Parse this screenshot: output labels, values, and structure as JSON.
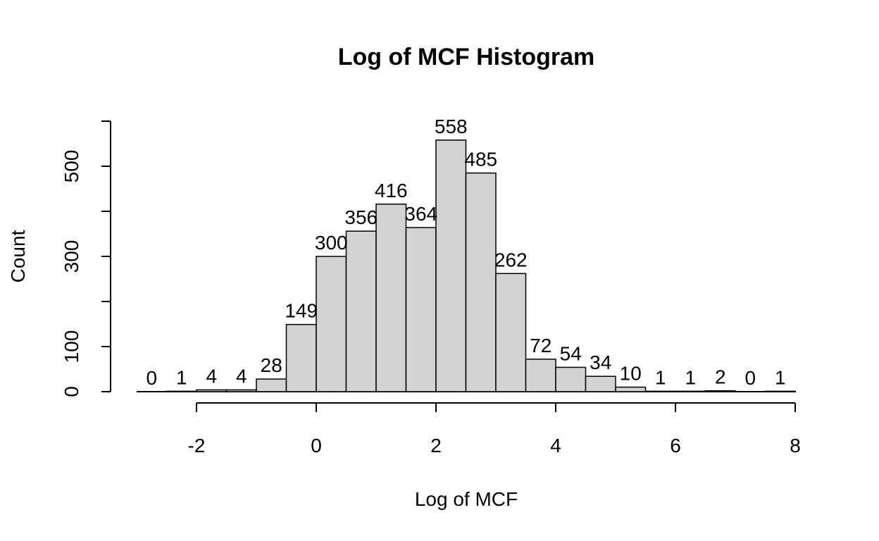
{
  "chart_data": {
    "type": "bar",
    "title": "Log of MCF Histogram",
    "xlabel": "Log of MCF",
    "ylabel": "Count",
    "bin_width": 0.5,
    "bins": [
      {
        "start": -3.0,
        "end": -2.5,
        "count": 0
      },
      {
        "start": -2.5,
        "end": -2.0,
        "count": 1
      },
      {
        "start": -2.0,
        "end": -1.5,
        "count": 4
      },
      {
        "start": -1.5,
        "end": -1.0,
        "count": 4
      },
      {
        "start": -1.0,
        "end": -0.5,
        "count": 28
      },
      {
        "start": -0.5,
        "end": 0.0,
        "count": 149
      },
      {
        "start": 0.0,
        "end": 0.5,
        "count": 300
      },
      {
        "start": 0.5,
        "end": 1.0,
        "count": 356
      },
      {
        "start": 1.0,
        "end": 1.5,
        "count": 416
      },
      {
        "start": 1.5,
        "end": 2.0,
        "count": 364
      },
      {
        "start": 2.0,
        "end": 2.5,
        "count": 558
      },
      {
        "start": 2.5,
        "end": 3.0,
        "count": 485
      },
      {
        "start": 3.0,
        "end": 3.5,
        "count": 262
      },
      {
        "start": 3.5,
        "end": 4.0,
        "count": 72
      },
      {
        "start": 4.0,
        "end": 4.5,
        "count": 54
      },
      {
        "start": 4.5,
        "end": 5.0,
        "count": 34
      },
      {
        "start": 5.0,
        "end": 5.5,
        "count": 10
      },
      {
        "start": 5.5,
        "end": 6.0,
        "count": 1
      },
      {
        "start": 6.0,
        "end": 6.5,
        "count": 1
      },
      {
        "start": 6.5,
        "end": 7.0,
        "count": 2
      },
      {
        "start": 7.0,
        "end": 7.5,
        "count": 0
      },
      {
        "start": 7.5,
        "end": 8.0,
        "count": 1
      }
    ],
    "xlim": [
      -3,
      8
    ],
    "ylim": [
      0,
      600
    ],
    "x_ticks": [
      -2,
      0,
      2,
      4,
      6,
      8
    ],
    "y_ticks": [
      0,
      100,
      200,
      300,
      400,
      500,
      600
    ],
    "y_tick_labels": [
      "0",
      "100",
      "",
      "300",
      "",
      "500",
      ""
    ],
    "grid": false,
    "legend": "none",
    "colors": {
      "bar_fill": "#d3d3d3",
      "bar_stroke": "#000000"
    }
  }
}
